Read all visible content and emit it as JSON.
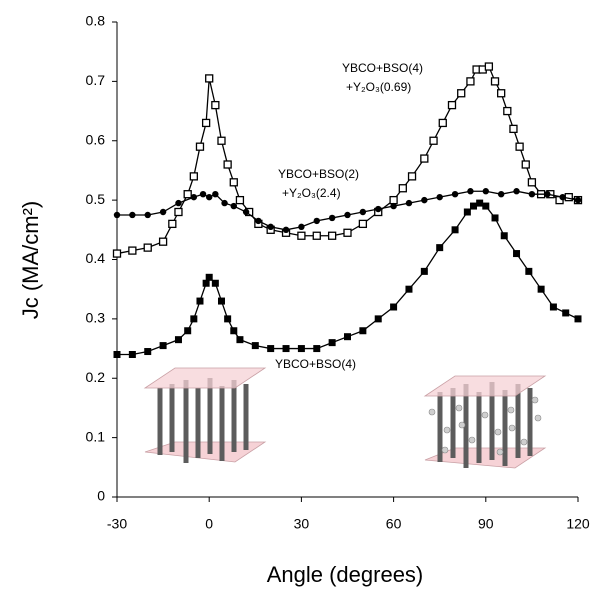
{
  "chart_data": {
    "type": "line",
    "xlabel": "Angle (degrees)",
    "ylabel": "Jc (MA/cm²)",
    "xlim": [
      -30,
      120
    ],
    "xticks": [
      -30,
      0,
      30,
      60,
      90,
      120
    ],
    "ylim": [
      0,
      0.8
    ],
    "yticks": [
      {
        "value": 0,
        "label": "0"
      },
      0.1,
      0.2,
      0.3,
      0.4,
      0.5,
      0.6,
      0.7,
      0.8
    ],
    "series": [
      {
        "labels": [
          "YBCO+BSO(4)",
          "+Y₂O₃(0.69)"
        ],
        "marker": "open-square",
        "color": "#000000",
        "x": [
          -30,
          -25,
          -20,
          -15,
          -12,
          -10,
          -7,
          -5,
          -3,
          -1,
          0,
          2,
          4,
          6,
          8,
          10,
          13,
          16,
          20,
          25,
          30,
          35,
          40,
          45,
          50,
          55,
          60,
          63,
          66,
          70,
          73,
          76,
          79,
          82,
          85,
          87,
          89,
          91,
          93,
          95,
          97,
          99,
          101,
          103,
          105,
          108,
          111,
          114,
          117,
          120
        ],
        "values": [
          0.41,
          0.415,
          0.42,
          0.43,
          0.46,
          0.48,
          0.51,
          0.54,
          0.59,
          0.63,
          0.705,
          0.66,
          0.6,
          0.56,
          0.53,
          0.5,
          0.48,
          0.46,
          0.45,
          0.445,
          0.44,
          0.44,
          0.44,
          0.445,
          0.46,
          0.48,
          0.5,
          0.52,
          0.54,
          0.57,
          0.6,
          0.63,
          0.66,
          0.68,
          0.7,
          0.72,
          0.72,
          0.725,
          0.7,
          0.68,
          0.65,
          0.62,
          0.59,
          0.56,
          0.53,
          0.51,
          0.51,
          0.5,
          0.505,
          0.5
        ]
      },
      {
        "labels": [
          "YBCO+BSO(2)",
          "+Y₂O₃(2.4)"
        ],
        "marker": "circle",
        "color": "#000000",
        "x": [
          -30,
          -25,
          -20,
          -15,
          -10,
          -5,
          -2,
          0,
          2,
          5,
          8,
          12,
          16,
          20,
          25,
          30,
          35,
          40,
          45,
          50,
          55,
          60,
          65,
          70,
          75,
          80,
          85,
          90,
          95,
          100,
          105,
          110,
          115,
          120
        ],
        "values": [
          0.475,
          0.475,
          0.475,
          0.48,
          0.495,
          0.505,
          0.51,
          0.505,
          0.51,
          0.495,
          0.49,
          0.48,
          0.465,
          0.455,
          0.45,
          0.455,
          0.465,
          0.47,
          0.475,
          0.48,
          0.485,
          0.49,
          0.495,
          0.5,
          0.505,
          0.51,
          0.515,
          0.515,
          0.51,
          0.515,
          0.51,
          0.51,
          0.505,
          0.5
        ]
      },
      {
        "labels": [
          "YBCO+BSO(4)"
        ],
        "marker": "square",
        "color": "#000000",
        "x": [
          -30,
          -25,
          -20,
          -15,
          -10,
          -7,
          -5,
          -3,
          -1,
          0,
          2,
          4,
          6,
          8,
          10,
          15,
          20,
          25,
          30,
          35,
          40,
          45,
          50,
          55,
          60,
          65,
          70,
          75,
          80,
          84,
          86,
          88,
          90,
          93,
          96,
          100,
          104,
          108,
          112,
          116,
          120
        ],
        "values": [
          0.24,
          0.24,
          0.245,
          0.255,
          0.265,
          0.28,
          0.3,
          0.33,
          0.36,
          0.37,
          0.36,
          0.33,
          0.3,
          0.28,
          0.265,
          0.255,
          0.25,
          0.25,
          0.25,
          0.25,
          0.26,
          0.27,
          0.28,
          0.3,
          0.32,
          0.35,
          0.38,
          0.42,
          0.45,
          0.48,
          0.49,
          0.495,
          0.49,
          0.47,
          0.44,
          0.41,
          0.38,
          0.35,
          0.32,
          0.31,
          0.3
        ]
      }
    ]
  }
}
